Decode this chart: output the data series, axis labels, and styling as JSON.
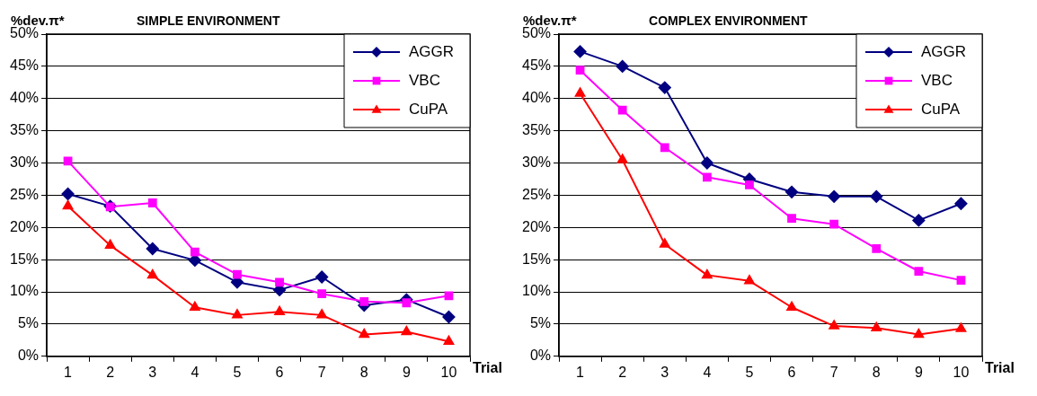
{
  "chart_data": [
    {
      "type": "line",
      "title": "SIMPLE ENVIRONMENT",
      "ylabel": "%dev.π*",
      "xlabel": "Trial",
      "categories": [
        "1",
        "2",
        "3",
        "4",
        "5",
        "6",
        "7",
        "8",
        "9",
        "10"
      ],
      "ylim": [
        0,
        50
      ],
      "yticks": [
        {
          "value": 0,
          "label": "0%"
        },
        {
          "value": 5,
          "label": "5%"
        },
        {
          "value": 10,
          "label": "10%"
        },
        {
          "value": 15,
          "label": "15%"
        },
        {
          "value": 20,
          "label": "20%"
        },
        {
          "value": 25,
          "label": "25%"
        },
        {
          "value": 30,
          "label": "30%"
        },
        {
          "value": 35,
          "label": "35%"
        },
        {
          "value": 40,
          "label": "40%"
        },
        {
          "value": 45,
          "label": "45%"
        },
        {
          "value": 50,
          "label": "50%"
        }
      ],
      "grid": "y",
      "legend": "top right",
      "series": [
        {
          "name": "AGGR",
          "color": "#000080",
          "marker": "diamond",
          "values": [
            25.2,
            23.3,
            16.7,
            14.9,
            11.5,
            10.3,
            12.3,
            7.9,
            8.8,
            6.1
          ]
        },
        {
          "name": "VBC",
          "color": "#ff00ff",
          "marker": "square",
          "values": [
            30.3,
            23.2,
            23.8,
            16.2,
            12.7,
            11.5,
            9.7,
            8.5,
            8.3,
            9.4
          ]
        },
        {
          "name": "CuPA",
          "color": "#ff0000",
          "marker": "triangle",
          "values": [
            23.3,
            17.2,
            12.6,
            7.6,
            6.4,
            6.9,
            6.4,
            3.4,
            3.8,
            2.3
          ]
        }
      ]
    },
    {
      "type": "line",
      "title": "COMPLEX ENVIRONMENT",
      "ylabel": "%dev.π*",
      "xlabel": "Trial",
      "categories": [
        "1",
        "2",
        "3",
        "4",
        "5",
        "6",
        "7",
        "8",
        "9",
        "10"
      ],
      "ylim": [
        0,
        50
      ],
      "yticks": [
        {
          "value": 0,
          "label": "0%"
        },
        {
          "value": 5,
          "label": "5%"
        },
        {
          "value": 10,
          "label": "10%"
        },
        {
          "value": 15,
          "label": "15%"
        },
        {
          "value": 20,
          "label": "20%"
        },
        {
          "value": 25,
          "label": "25%"
        },
        {
          "value": 30,
          "label": "30%"
        },
        {
          "value": 35,
          "label": "35%"
        },
        {
          "value": 40,
          "label": "40%"
        },
        {
          "value": 45,
          "label": "45%"
        },
        {
          "value": 50,
          "label": "50%"
        }
      ],
      "grid": "y",
      "legend": "top right",
      "series": [
        {
          "name": "AGGR",
          "color": "#000080",
          "marker": "diamond",
          "values": [
            47.3,
            45.0,
            41.7,
            30.0,
            27.5,
            25.5,
            24.8,
            24.8,
            21.1,
            23.7
          ]
        },
        {
          "name": "VBC",
          "color": "#ff00ff",
          "marker": "square",
          "values": [
            44.4,
            38.2,
            32.4,
            27.8,
            26.6,
            21.4,
            20.5,
            16.7,
            13.2,
            11.8
          ]
        },
        {
          "name": "CuPA",
          "color": "#ff0000",
          "marker": "triangle",
          "values": [
            40.8,
            30.5,
            17.4,
            12.6,
            11.7,
            7.6,
            4.7,
            4.4,
            3.4,
            4.3
          ]
        }
      ]
    }
  ]
}
